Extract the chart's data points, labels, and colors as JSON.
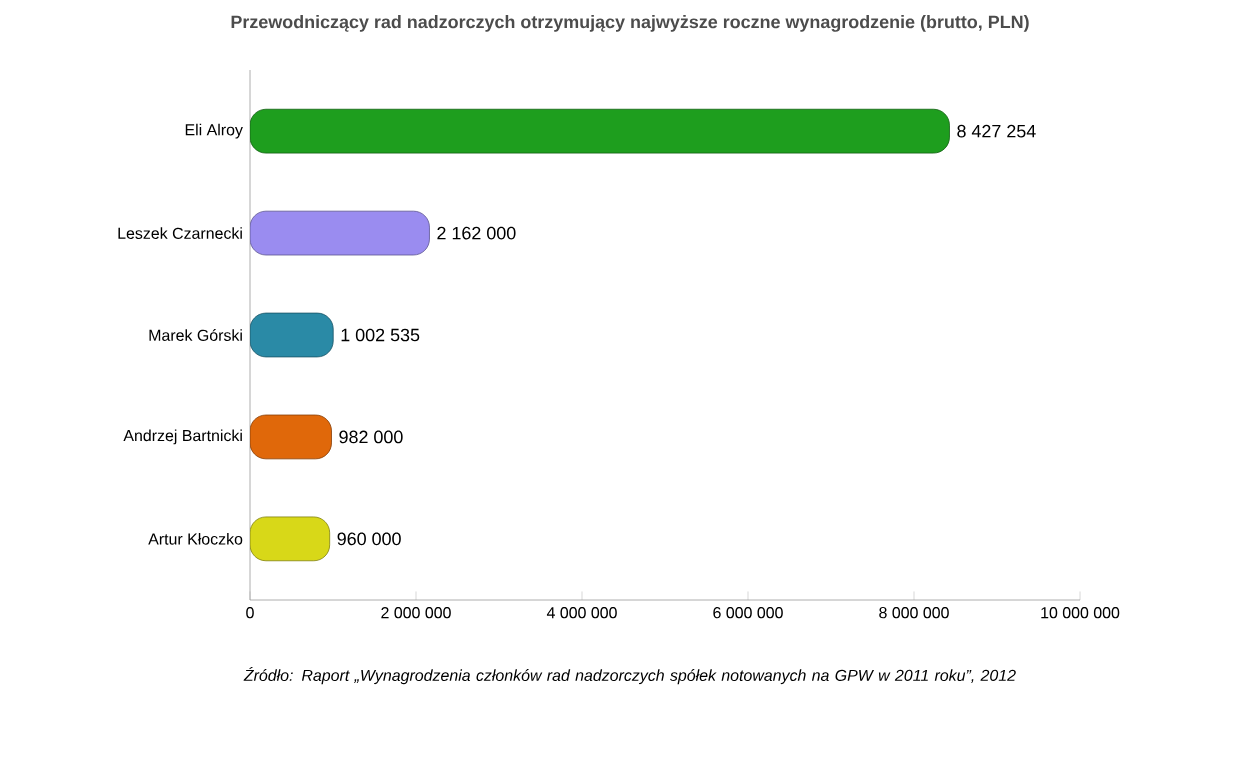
{
  "chart_data": {
    "type": "bar",
    "orientation": "horizontal",
    "title": "Przewodniczący rad nadzorczych otrzymujący najwyższe roczne wynagrodzenie (brutto, PLN)",
    "categories": [
      "Eli Alroy",
      "Leszek Czarnecki",
      "Marek Górski",
      "Andrzej Bartnicki",
      "Artur Kłoczko"
    ],
    "values": [
      8427254,
      2162000,
      1002535,
      982000,
      960000
    ],
    "value_labels": [
      "8 427 254",
      "2 162 000",
      "1 002 535",
      "982 000",
      "960 000"
    ],
    "colors": [
      "#1e9e1e",
      "#9a8cf0",
      "#2a8aa6",
      "#e0680a",
      "#d8d818"
    ],
    "xlim": [
      0,
      10000000
    ],
    "xticks": [
      0,
      {
        "value": 2000000,
        "label": "2 000 000"
      },
      {
        "value": 4000000,
        "label": "4 000 000"
      },
      {
        "value": 6000000,
        "label": "6 000 000"
      },
      {
        "value": 8000000,
        "label": "8 000 000"
      },
      {
        "value": 10000000,
        "label": "10 000 000"
      }
    ],
    "grid": false,
    "annotations": [
      "Źródło: Raport „Wynagrodzenia członków rad nadzorczych spółek notowanych na GPW w 2011 roku”, 2012"
    ]
  }
}
